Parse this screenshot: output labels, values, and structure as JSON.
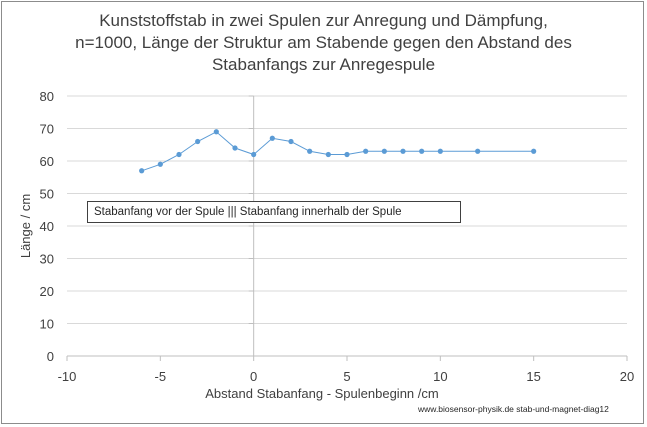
{
  "chart_data": {
    "type": "line",
    "title_lines": [
      "Kunststoffstab in zwei Spulen zur Anregung und Dämpfung,",
      "n=1000, Länge der Struktur am Stabende gegen den Abstand des",
      "Stabanfangs zur Anregespule"
    ],
    "xlabel": "Abstand Stabanfang - Spulenbeginn /cm",
    "ylabel": "Länge / cm",
    "xlim": [
      -10,
      20
    ],
    "ylim": [
      0,
      80
    ],
    "xticks": [
      -10,
      -5,
      0,
      5,
      10,
      15,
      20
    ],
    "yticks": [
      0,
      10,
      20,
      30,
      40,
      50,
      60,
      70,
      80
    ],
    "grid": "horizontal",
    "series": [
      {
        "name": "Länge",
        "color": "#5B9BD5",
        "x": [
          -6,
          -5,
          -4,
          -3,
          -2,
          -1,
          0,
          1,
          2,
          3,
          4,
          5,
          6,
          7,
          8,
          9,
          10,
          12,
          15
        ],
        "y": [
          57,
          59,
          62,
          66,
          69,
          64,
          62,
          67,
          66,
          63,
          62,
          62,
          63,
          63,
          63,
          63,
          63,
          63,
          63
        ]
      }
    ],
    "annotation": "Stabanfang vor der Spule    ||| Stabanfang innerhalb der Spule",
    "source": "www.biosensor-physik.de  stab-und-magnet-diag12"
  }
}
